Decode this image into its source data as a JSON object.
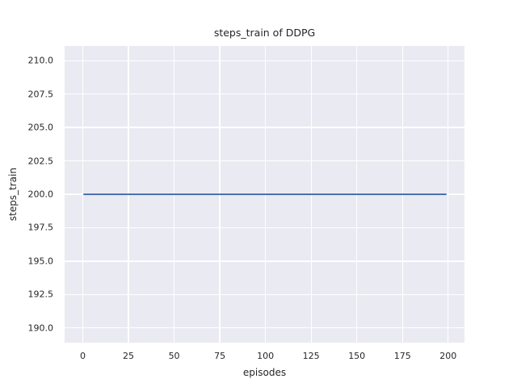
{
  "figure": {
    "background": "#ffffff",
    "plot_background": "#eaeaf2",
    "grid_color": "#ffffff",
    "text_color": "#262626"
  },
  "chart_data": {
    "type": "line",
    "title": "steps_train of DDPG",
    "xlabel": "episodes",
    "ylabel": "steps_train",
    "grid": true,
    "legend_position": "none",
    "xlim": [
      -9.95,
      208.95
    ],
    "ylim": [
      188.9,
      211.1
    ],
    "x_ticks": [
      0,
      25,
      50,
      75,
      100,
      125,
      150,
      175,
      200
    ],
    "x_tick_labels": [
      "0",
      "25",
      "50",
      "75",
      "100",
      "125",
      "150",
      "175",
      "200"
    ],
    "y_ticks": [
      190.0,
      192.5,
      195.0,
      197.5,
      200.0,
      202.5,
      205.0,
      207.5,
      210.0
    ],
    "y_tick_labels": [
      "190.0",
      "192.5",
      "195.0",
      "197.5",
      "200.0",
      "202.5",
      "205.0",
      "207.5",
      "210.0"
    ],
    "series": [
      {
        "name": "steps_train",
        "color": "#4c72b0",
        "x": [
          0,
          199
        ],
        "y": [
          200,
          200
        ],
        "note": "constant value 200 for every episode from 0 to 199"
      }
    ]
  }
}
